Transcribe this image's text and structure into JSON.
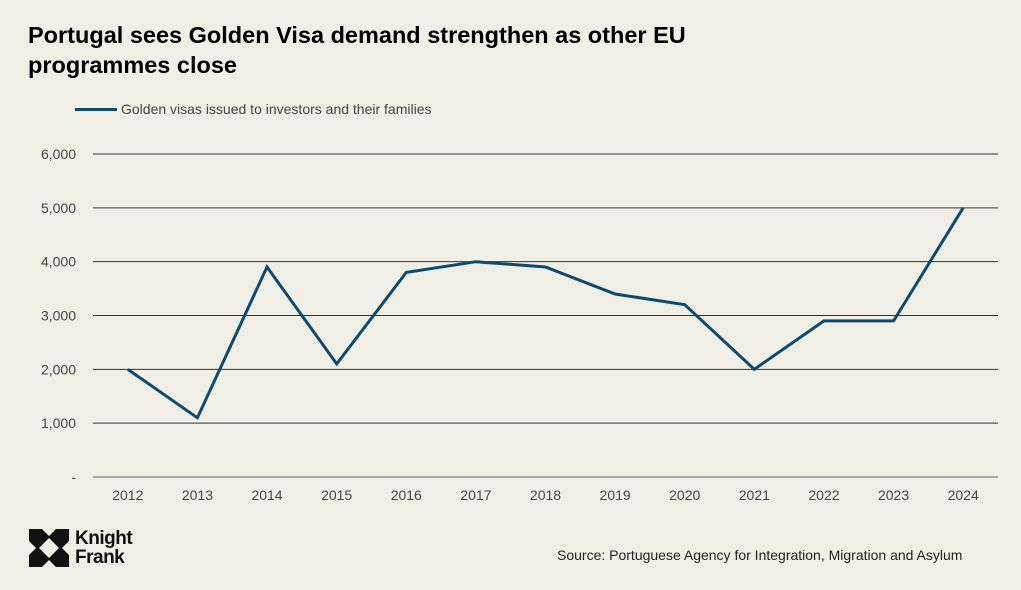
{
  "chart_data": {
    "type": "line",
    "title": "Portugal sees Golden Visa demand strengthen as other EU programmes close",
    "xlabel": "",
    "ylabel": "",
    "categories": [
      "2012",
      "2013",
      "2014",
      "2015",
      "2016",
      "2017",
      "2018",
      "2019",
      "2020",
      "2021",
      "2022",
      "2023",
      "2024"
    ],
    "series": [
      {
        "name": "Golden visas issued to investors and their families",
        "color": "#0d4a70",
        "values": [
          2000,
          1100,
          3900,
          2100,
          3800,
          4000,
          3900,
          3400,
          3200,
          2000,
          2900,
          2900,
          5000
        ]
      }
    ],
    "ylim": [
      0,
      6000
    ],
    "yticks": [
      0,
      1000,
      2000,
      3000,
      4000,
      5000,
      6000
    ],
    "ytick_labels": [
      "-",
      "1,000",
      "2,000",
      "3,000",
      "4,000",
      "5,000",
      "6,000"
    ],
    "grid": true,
    "legend_position": "top-left"
  },
  "legend": {
    "label": "Golden visas issued to investors and their families"
  },
  "branding": {
    "line1": "Knight",
    "line2": "Frank"
  },
  "source": "Source:  Portuguese Agency for Integration, Migration and Asylum"
}
